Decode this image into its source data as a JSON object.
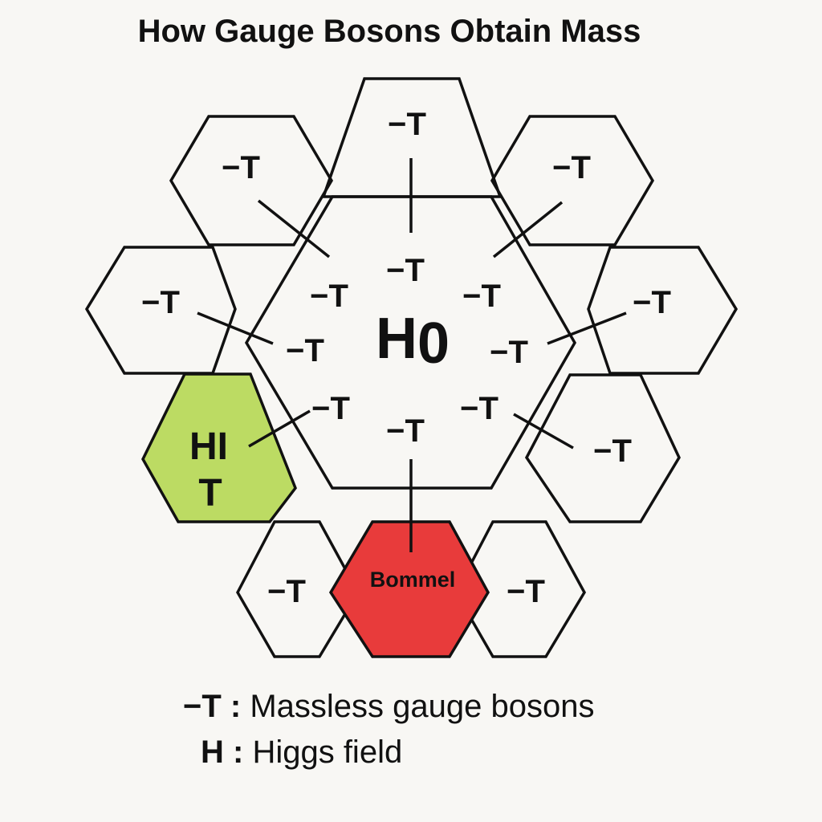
{
  "title": "How Gauge Bosons Obtain Mass",
  "center": {
    "main": "H",
    "sub": "0"
  },
  "boson_label": "−T",
  "higgs_cell": {
    "line1": "HI",
    "line2": "T",
    "color": "#bcdb63"
  },
  "bommel_cell": {
    "label": "Bommel",
    "color": "#e83b3b"
  },
  "legend": [
    {
      "symbol": "−T",
      "description": "Massless gauge bosons"
    },
    {
      "symbol": "H",
      "description": "Higgs field"
    }
  ],
  "colors": {
    "stroke": "#111111",
    "background": "#f8f7f4"
  }
}
